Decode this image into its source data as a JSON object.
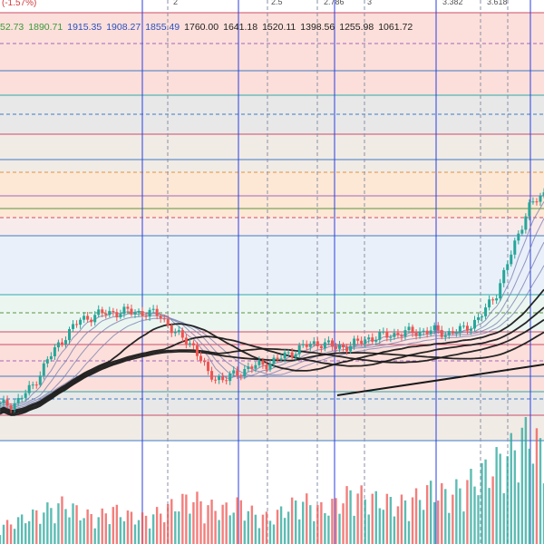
{
  "header": {
    "change_pct": "(-1.57%)",
    "fib_tags": [
      "2",
      "2.5",
      "2.786",
      "3",
      "3.382",
      "3.618"
    ]
  },
  "ma_legend": [
    {
      "value": "52.73",
      "color": "#3a9a3a"
    },
    {
      "value": "1890.71",
      "color": "#3a9a3a"
    },
    {
      "value": "1915.35",
      "color": "#2a4fc0"
    },
    {
      "value": "1908.27",
      "color": "#2a4fc0"
    },
    {
      "value": "1855.49",
      "color": "#2a4fc0"
    },
    {
      "value": "1760.00",
      "color": "#222222"
    },
    {
      "value": "1641.18",
      "color": "#222222"
    },
    {
      "value": "1520.11",
      "color": "#222222"
    },
    {
      "value": "1398.56",
      "color": "#222222"
    },
    {
      "value": "1255.98",
      "color": "#222222"
    },
    {
      "value": "1061.72",
      "color": "#222222"
    }
  ],
  "colors": {
    "up": "#26a69a",
    "down": "#ef5350",
    "vertical_line": "#2b3fe0",
    "ma_dark": "#1a1a1a",
    "ma_light": "#7a7fb0"
  },
  "chart_data": {
    "type": "candlestick",
    "price_series": [
      1095,
      1105,
      1165,
      1270,
      1355,
      1420,
      1440,
      1450,
      1452,
      1448,
      1440,
      1365,
      1330,
      1215,
      1190,
      1225,
      1245,
      1260,
      1290,
      1320,
      1335,
      1315,
      1325,
      1350,
      1360,
      1370,
      1375,
      1380,
      1370,
      1385,
      1430,
      1520,
      1680,
      1850,
      1900
    ],
    "volume_series": [
      6,
      8,
      10,
      12,
      14,
      11,
      9,
      12,
      10,
      9,
      11,
      14,
      16,
      13,
      12,
      14,
      10,
      9,
      13,
      15,
      12,
      14,
      18,
      16,
      15,
      14,
      16,
      19,
      17,
      20,
      24,
      28,
      32,
      40,
      30
    ],
    "horizontal_levels": [
      {
        "color": "#c83c5a",
        "band": "#fbd9d4"
      },
      {
        "color": "#9b59b6",
        "band": "#fbd9d4"
      },
      {
        "color": "#2c6fbf",
        "band": "#fbd9d4"
      },
      {
        "color": "#1aa3a3",
        "band": "#e4e4e4"
      },
      {
        "color": "#2c6fbf",
        "band": "#e4e4e4"
      },
      {
        "color": "#c83c5a",
        "band": "#efe7e0"
      },
      {
        "color": "#2c6fbf",
        "band": "#efe7e0"
      },
      {
        "color": "#e08a2a",
        "band": "#fde4cf"
      },
      {
        "color": "#9b59b6",
        "band": "#fde4cf"
      },
      {
        "color": "#4a8a2a",
        "band": "#fde4cf"
      },
      {
        "color": "#c83c5a",
        "band": "#f7e8e8"
      },
      {
        "color": "#2c6fbf",
        "band": "#e6edf8"
      },
      {
        "color": "#1aa3a3",
        "band": "#e7f4ef"
      },
      {
        "color": "#4a8a2a",
        "band": "#e7f4ef"
      },
      {
        "color": "#c83c5a",
        "band": "#fde0dc"
      }
    ]
  }
}
